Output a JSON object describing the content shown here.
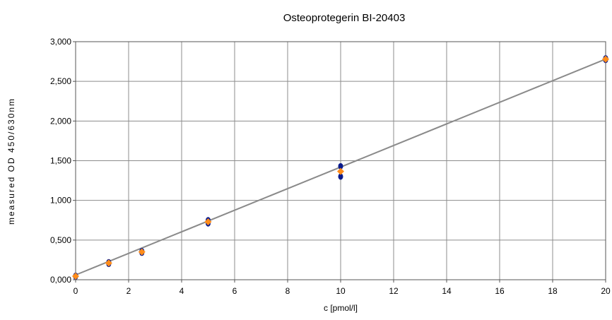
{
  "chart_data": {
    "type": "scatter",
    "title": "Osteoprotegerin BI-20403",
    "xlabel": "c [pmol/l]",
    "ylabel": "measured OD 450/630nm",
    "xlim": [
      0,
      20
    ],
    "ylim": [
      0,
      3
    ],
    "x_ticks": [
      "0",
      "2",
      "4",
      "6",
      "8",
      "10",
      "12",
      "14",
      "16",
      "18",
      "20"
    ],
    "y_ticks": [
      "0,000",
      "0,500",
      "1,000",
      "1,500",
      "2,000",
      "2,500",
      "3,000"
    ],
    "grid": true,
    "series": [
      {
        "color": "#0a1a8c",
        "marker": "circle",
        "points": [
          [
            0,
            0.04
          ],
          [
            0,
            0.05
          ],
          [
            1.25,
            0.22
          ],
          [
            1.25,
            0.2
          ],
          [
            2.5,
            0.36
          ],
          [
            2.5,
            0.34
          ],
          [
            5,
            0.75
          ],
          [
            5,
            0.71
          ],
          [
            10,
            1.43
          ],
          [
            10,
            1.3
          ],
          [
            20,
            2.79
          ],
          [
            20,
            2.77
          ]
        ]
      },
      {
        "color": "#ff8c1a",
        "marker": "diamond",
        "points": [
          [
            0,
            0.045
          ],
          [
            1.25,
            0.21
          ],
          [
            2.5,
            0.35
          ],
          [
            5,
            0.73
          ],
          [
            10,
            1.365
          ],
          [
            20,
            2.78
          ]
        ]
      }
    ],
    "fit_line": {
      "color": "#8a8a8a",
      "x": [
        0,
        20
      ],
      "y": [
        0.06,
        2.78
      ]
    }
  }
}
